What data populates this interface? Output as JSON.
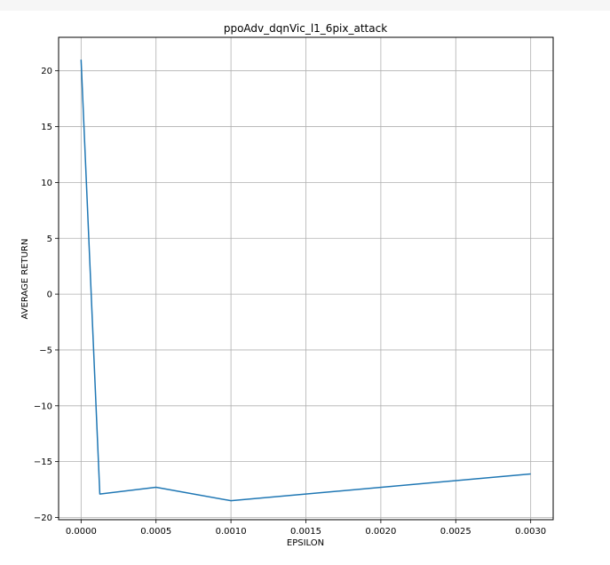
{
  "chart_data": {
    "type": "line",
    "title": "ppoAdv_dqnVic_l1_6pix_attack",
    "xlabel": "EPSILON",
    "ylabel": "AVERAGE RETURN",
    "xlim": [
      -0.00015,
      0.00315
    ],
    "ylim": [
      -20.2,
      23.0
    ],
    "xticks": [
      0.0,
      0.0005,
      0.001,
      0.0015,
      0.002,
      0.0025,
      0.003
    ],
    "xtick_labels": [
      "0.0000",
      "0.0005",
      "0.0010",
      "0.0015",
      "0.0020",
      "0.0025",
      "0.0030"
    ],
    "yticks": [
      -20,
      -15,
      -10,
      -5,
      0,
      5,
      10,
      15,
      20
    ],
    "ytick_labels": [
      "−20",
      "−15",
      "−10",
      "−5",
      "0",
      "5",
      "10",
      "15",
      "20"
    ],
    "grid": true,
    "series": [
      {
        "color": "#1f77b4",
        "x": [
          0.0,
          0.000125,
          0.0005,
          0.001,
          0.003
        ],
        "y": [
          21.0,
          -17.9,
          -17.3,
          -18.5,
          -16.1
        ]
      }
    ]
  }
}
